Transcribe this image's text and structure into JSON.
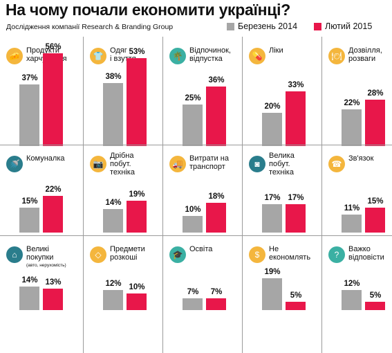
{
  "title": "На чому почали економити українці?",
  "subtitle": "Дослідження компанії Research & Branding Group",
  "colors": {
    "series1": "#a6a6a6",
    "series2": "#e8174a"
  },
  "chart_data": {
    "type": "bar",
    "series": [
      {
        "name": "Березень 2014"
      },
      {
        "name": "Лютий 2015"
      }
    ],
    "categories": [
      {
        "label": "Продукти\nхарчування",
        "icon": "cheese-icon",
        "icon_color": "#f4b63d",
        "values": [
          37,
          56
        ],
        "labels": [
          "37%",
          "56%"
        ]
      },
      {
        "label": "Одяг\nі взуття",
        "icon": "tshirt-icon",
        "icon_color": "#f4b63d",
        "values": [
          38,
          53
        ],
        "labels": [
          "38%",
          "53%"
        ]
      },
      {
        "label": "Відпочинок,\nвідпустка",
        "icon": "palm-tree-icon",
        "icon_color": "#3bb0a3",
        "values": [
          25,
          36
        ],
        "labels": [
          "25%",
          "36%"
        ]
      },
      {
        "label": "Ліки",
        "icon": "pills-icon",
        "icon_color": "#f4b63d",
        "values": [
          20,
          33
        ],
        "labels": [
          "20%",
          "33%"
        ]
      },
      {
        "label": "Дозвілля,\nрозваги",
        "icon": "dining-icon",
        "icon_color": "#f4b63d",
        "values": [
          22,
          28
        ],
        "labels": [
          "22%",
          "28%"
        ]
      },
      {
        "label": "Комуналка",
        "icon": "shower-icon",
        "icon_color": "#2a7d8c",
        "values": [
          15,
          22
        ],
        "labels": [
          "15%",
          "22%"
        ]
      },
      {
        "label": "Дрібна\nпобут.\nтехніка",
        "icon": "camera-icon",
        "icon_color": "#f4b63d",
        "values": [
          14,
          19
        ],
        "labels": [
          "14%",
          "19%"
        ]
      },
      {
        "label": "Витрати на\nтранспорт",
        "icon": "truck-icon",
        "icon_color": "#f4b63d",
        "values": [
          10,
          18
        ],
        "labels": [
          "10%",
          "18%"
        ]
      },
      {
        "label": "Велика\nпобут.\nтехніка",
        "icon": "washing-machine-icon",
        "icon_color": "#2a7d8c",
        "values": [
          17,
          17
        ],
        "labels": [
          "17%",
          "17%"
        ]
      },
      {
        "label": "Зв'язок",
        "icon": "phone-icon",
        "icon_color": "#f4b63d",
        "values": [
          11,
          15
        ],
        "labels": [
          "11%",
          "15%"
        ]
      },
      {
        "label": "Великі\nпокупки",
        "sublabel": "(авто, нерухомість)",
        "icon": "house-icon",
        "icon_color": "#2a7d8c",
        "values": [
          14,
          13
        ],
        "labels": [
          "14%",
          "13%"
        ]
      },
      {
        "label": "Предмети\nрозкоші",
        "icon": "diamond-icon",
        "icon_color": "#f4b63d",
        "values": [
          12,
          10
        ],
        "labels": [
          "12%",
          "10%"
        ]
      },
      {
        "label": "Освіта",
        "icon": "graduation-cap-icon",
        "icon_color": "#3bb0a3",
        "values": [
          7,
          7
        ],
        "labels": [
          "7%",
          "7%"
        ]
      },
      {
        "label": "Не\nекономлять",
        "icon": "dollar-icon",
        "icon_color": "#f4b63d",
        "values": [
          19,
          5
        ],
        "labels": [
          "19%",
          "5%"
        ]
      },
      {
        "label": "Важко\nвідповісти",
        "icon": "question-icon",
        "icon_color": "#3bb0a3",
        "values": [
          12,
          5
        ],
        "labels": [
          "12%",
          "5%"
        ]
      }
    ],
    "ylim": [
      0,
      60
    ]
  }
}
